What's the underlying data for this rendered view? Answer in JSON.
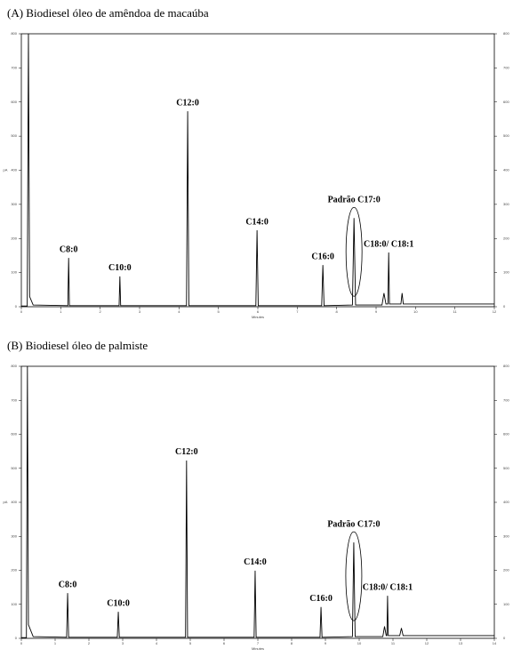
{
  "chart_data": [
    {
      "type": "line",
      "title": "(A) Biodiesel óleo de amêndoa de macaúba",
      "xlabel": "Minutes",
      "ylabel": "pA",
      "color": "#000000",
      "xlim": [
        0,
        12
      ],
      "xticks": [
        0,
        1,
        2,
        3,
        4,
        5,
        6,
        7,
        8,
        9,
        10,
        11,
        12
      ],
      "ylim": [
        0,
        800
      ],
      "yticks": [
        0,
        100,
        200,
        300,
        400,
        500,
        600,
        700,
        800
      ],
      "x": [
        0,
        0.15,
        0.18,
        0.21,
        0.3,
        1.18,
        1.2,
        1.22,
        2.48,
        2.5,
        2.52,
        4.19,
        4.22,
        4.25,
        5.95,
        5.98,
        6.01,
        7.62,
        7.65,
        7.68,
        8.4,
        8.44,
        8.48,
        9.15,
        9.2,
        9.25,
        9.3,
        9.32,
        9.34,
        9.63,
        9.66,
        9.69,
        12
      ],
      "values": [
        2,
        2,
        800,
        30,
        5,
        3,
        143,
        3,
        3,
        89,
        3,
        3,
        573,
        3,
        3,
        224,
        3,
        3,
        122,
        3,
        5,
        260,
        5,
        5,
        40,
        8,
        8,
        159,
        8,
        8,
        40,
        8,
        8
      ],
      "annotations": [
        {
          "text": "C8:0",
          "x": 1.2
        },
        {
          "text": "C10:0",
          "x": 2.5
        },
        {
          "text": "C12:0",
          "x": 4.22
        },
        {
          "text": "C14:0",
          "x": 5.98
        },
        {
          "text": "C16:0",
          "x": 7.65
        },
        {
          "text": "Padrão C17:0",
          "x": 8.44,
          "circled": true
        },
        {
          "text": "C18:0/ C18:1",
          "x": 9.32
        }
      ]
    },
    {
      "type": "line",
      "title": "(B) Biodiesel óleo de palmiste",
      "xlabel": "Minutes",
      "ylabel": "pA",
      "color": "#000000",
      "xlim": [
        0,
        14
      ],
      "xticks": [
        0,
        1,
        2,
        3,
        4,
        5,
        6,
        7,
        8,
        9,
        10,
        11,
        12,
        13,
        14
      ],
      "ylim": [
        0,
        800
      ],
      "yticks": [
        0,
        100,
        200,
        300,
        400,
        500,
        600,
        700,
        800
      ],
      "x": [
        0,
        0.15,
        0.18,
        0.21,
        0.35,
        1.34,
        1.37,
        1.4,
        2.84,
        2.87,
        2.9,
        4.86,
        4.89,
        4.92,
        6.89,
        6.92,
        6.95,
        8.84,
        8.87,
        8.9,
        9.8,
        9.84,
        9.88,
        10.7,
        10.75,
        10.8,
        10.82,
        10.84,
        10.86,
        11.2,
        11.25,
        11.3,
        14
      ],
      "values": [
        2,
        2,
        800,
        40,
        5,
        3,
        133,
        3,
        3,
        78,
        3,
        3,
        523,
        3,
        3,
        199,
        3,
        3,
        92,
        3,
        5,
        282,
        5,
        5,
        35,
        8,
        8,
        125,
        8,
        8,
        30,
        8,
        8
      ],
      "annotations": [
        {
          "text": "C8:0",
          "x": 1.37
        },
        {
          "text": "C10:0",
          "x": 2.87
        },
        {
          "text": "C12:0",
          "x": 4.89
        },
        {
          "text": "C14:0",
          "x": 6.92
        },
        {
          "text": "C16:0",
          "x": 8.87
        },
        {
          "text": "Padrão C17:0",
          "x": 9.84,
          "circled": true
        },
        {
          "text": "C18:0/ C18:1",
          "x": 10.84
        }
      ]
    }
  ]
}
